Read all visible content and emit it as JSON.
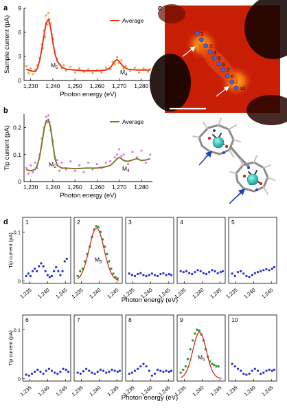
{
  "colors": {
    "average_a": "#e8331f",
    "points_a": "#f7a237",
    "average_b": "#7a7a2a",
    "points_b": "#e57ae3",
    "spectrum_points": "#1f2fd6",
    "peak_points": "#2e9a2e",
    "fit_line": "#d6261c",
    "stm_dots": "#4c61c9"
  },
  "panels": {
    "a": {
      "letter": "a",
      "ylabel": "Sample current (pA)",
      "xlabel": "Photon energy (eV)",
      "legend": "Average",
      "peak1_label": "M",
      "peak1_sub": "5",
      "peak2_label": "M",
      "peak2_sub": "4"
    },
    "b": {
      "letter": "b",
      "ylabel": "Tip current (pA)",
      "xlabel": "Photon energy (eV)",
      "legend": "Average",
      "peak1_label": "M",
      "peak1_sub": "5",
      "peak2_label": "M",
      "peak2_sub": "4"
    },
    "c": {
      "letter": "c"
    },
    "d": {
      "letter": "d",
      "ylabel": "Tip current (pA)",
      "xlabel": "Photon energy (eV)",
      "peak_label": "M",
      "peak_sub": "5"
    }
  },
  "chart_data": [
    {
      "id": "a",
      "type": "scatter",
      "xlabel": "Photon energy (eV)",
      "ylabel": "Sample current (pA)",
      "xlim": [
        1227,
        1285
      ],
      "ylim": [
        0,
        9
      ],
      "xticks": [
        1230,
        1240,
        1250,
        1260,
        1270,
        1280
      ],
      "xtick_labels": [
        "1,230",
        "1,240",
        "1,250",
        "1,260",
        "1,270",
        "1,280"
      ],
      "yticks": [
        0,
        3,
        6,
        9
      ],
      "ytick_labels": [
        "0",
        "3",
        "6",
        "9"
      ],
      "series": [
        {
          "name": "Average",
          "style": "line",
          "x": [
            1228,
            1230,
            1232,
            1233,
            1234,
            1235,
            1236,
            1237,
            1238,
            1239,
            1240,
            1241,
            1242,
            1244,
            1246,
            1250,
            1255,
            1260,
            1264,
            1266,
            1267,
            1268,
            1269,
            1270,
            1271,
            1272,
            1274,
            1278,
            1282,
            1284
          ],
          "y": [
            1.4,
            1.2,
            1.1,
            1.5,
            2.4,
            3.9,
            5.6,
            7.2,
            7.6,
            6.6,
            4.8,
            3.3,
            2.4,
            1.7,
            1.4,
            1.3,
            1.2,
            1.2,
            1.3,
            1.6,
            2.0,
            2.4,
            2.6,
            2.4,
            2.0,
            1.7,
            1.4,
            1.3,
            1.3,
            1.3
          ]
        },
        {
          "name": "",
          "style": "points",
          "x": [
            1228,
            1229,
            1230,
            1231,
            1232,
            1233,
            1234,
            1235,
            1235.5,
            1236,
            1236.5,
            1237,
            1237.5,
            1238,
            1238.5,
            1239,
            1239.5,
            1240,
            1241,
            1242,
            1243,
            1244,
            1245,
            1246,
            1248,
            1250,
            1252,
            1254,
            1256,
            1258,
            1260,
            1262,
            1264,
            1266,
            1267,
            1268,
            1269,
            1270,
            1271,
            1272,
            1273,
            1275,
            1277,
            1279,
            1281,
            1283,
            1284
          ],
          "y": [
            1.8,
            0.9,
            1.5,
            0.8,
            1.3,
            1.9,
            2.8,
            4.5,
            4.0,
            6.2,
            5.4,
            8.1,
            7.0,
            8.4,
            7.6,
            7.1,
            5.8,
            5.2,
            3.6,
            2.7,
            2.0,
            1.5,
            1.9,
            1.2,
            1.7,
            1.0,
            1.5,
            1.1,
            1.4,
            0.9,
            1.3,
            1.0,
            1.6,
            1.4,
            2.3,
            2.0,
            2.9,
            2.2,
            2.5,
            1.5,
            1.8,
            1.2,
            1.6,
            1.0,
            1.5,
            1.1,
            1.4
          ]
        }
      ]
    },
    {
      "id": "b",
      "type": "scatter",
      "xlabel": "Photon energy (eV)",
      "ylabel": "Tip current (pA)",
      "xlim": [
        1227,
        1285
      ],
      "ylim": [
        0,
        0.25
      ],
      "xticks": [
        1230,
        1240,
        1250,
        1260,
        1270,
        1280
      ],
      "xtick_labels": [
        "1,230",
        "1,240",
        "1,250",
        "1,260",
        "1,270",
        "1,280"
      ],
      "yticks": [
        0,
        0.1,
        0.2
      ],
      "ytick_labels": [
        "0",
        "0.1",
        "0.2"
      ],
      "series": [
        {
          "name": "Average",
          "style": "line",
          "x": [
            1228,
            1230,
            1232,
            1233,
            1234,
            1235,
            1236,
            1237,
            1238,
            1239,
            1240,
            1241,
            1242,
            1244,
            1246,
            1250,
            1255,
            1260,
            1264,
            1266,
            1268,
            1269,
            1270,
            1271,
            1272,
            1274,
            1276,
            1278,
            1280,
            1282,
            1284
          ],
          "y": [
            0.045,
            0.04,
            0.045,
            0.06,
            0.09,
            0.14,
            0.19,
            0.225,
            0.23,
            0.2,
            0.14,
            0.085,
            0.06,
            0.05,
            0.05,
            0.048,
            0.05,
            0.05,
            0.055,
            0.06,
            0.075,
            0.085,
            0.09,
            0.085,
            0.078,
            0.075,
            0.08,
            0.085,
            0.078,
            0.08,
            0.085
          ]
        },
        {
          "name": "",
          "style": "points",
          "x": [
            1228,
            1229,
            1230,
            1231,
            1232,
            1233,
            1234,
            1235,
            1236,
            1237,
            1237.5,
            1238,
            1238.5,
            1239,
            1240,
            1241,
            1242,
            1243,
            1244,
            1246,
            1248,
            1250,
            1252,
            1254,
            1256,
            1258,
            1260,
            1262,
            1264,
            1266,
            1268,
            1269,
            1270,
            1271,
            1272,
            1274,
            1276,
            1278,
            1280,
            1282,
            1284
          ],
          "y": [
            0.05,
            0.03,
            0.06,
            0.035,
            0.07,
            0.05,
            0.1,
            0.16,
            0.2,
            0.24,
            0.22,
            0.245,
            0.22,
            0.19,
            0.15,
            0.09,
            0.08,
            0.04,
            0.07,
            0.045,
            0.075,
            0.04,
            0.06,
            0.035,
            0.07,
            0.045,
            0.065,
            0.05,
            0.07,
            0.075,
            0.09,
            0.1,
            0.12,
            0.095,
            0.1,
            0.065,
            0.11,
            0.09,
            0.115,
            0.07,
            0.1
          ]
        }
      ]
    },
    {
      "id": "d",
      "type": "scatter",
      "xlabel": "Photon energy (eV)",
      "ylabel": "Tip current (pA)",
      "xlim": [
        1233,
        1246.5
      ],
      "ylim": [
        -0.005,
        0.13
      ],
      "xticks": [
        1235,
        1240,
        1245
      ],
      "xtick_labels": [
        "1,235",
        "1,240",
        "1,245"
      ],
      "yticks": [
        0,
        0.1
      ],
      "ytick_labels": [
        "0",
        "0.1"
      ],
      "subplots": [
        {
          "label": "1",
          "kind": "flat",
          "x": [
            1234,
            1234.6,
            1235.2,
            1235.8,
            1236.4,
            1237,
            1237.6,
            1238.2,
            1238.8,
            1239.4,
            1240,
            1240.6,
            1241.2,
            1241.8,
            1242.4,
            1243,
            1243.6,
            1244.2,
            1244.8,
            1245.4
          ],
          "y": [
            0.01,
            0.015,
            0.01,
            0.02,
            0.025,
            0.02,
            0.03,
            0.036,
            0.03,
            0.02,
            0.012,
            0.008,
            0.01,
            0.02,
            0.028,
            0.02,
            0.012,
            0.02,
            0.04,
            0.045
          ]
        },
        {
          "label": "2",
          "kind": "peak",
          "points_x": [
            1234,
            1234.7,
            1235.4,
            1236,
            1236.7,
            1237.4,
            1238,
            1238.6,
            1239.2,
            1239.8,
            1240.4,
            1241,
            1241.6,
            1242.2,
            1242.8,
            1243.4,
            1244,
            1244.6,
            1245.2
          ],
          "points_y": [
            0.01,
            0.02,
            0.025,
            0.04,
            0.055,
            0.07,
            0.09,
            0.105,
            0.112,
            0.11,
            0.1,
            0.085,
            0.07,
            0.055,
            0.04,
            0.025,
            0.015,
            0.008,
            0.005
          ],
          "fit_center": 1239.3,
          "fit_amp": 0.108,
          "fit_width": 2.1
        },
        {
          "label": "3",
          "kind": "flat",
          "x": [
            1234,
            1234.8,
            1235.6,
            1236.4,
            1237.2,
            1238,
            1238.8,
            1239.6,
            1240.4,
            1241.2,
            1242,
            1242.8,
            1243.6,
            1244.4,
            1245.2,
            1245.8
          ],
          "y": [
            0.015,
            0.012,
            0.01,
            0.014,
            0.016,
            0.012,
            0.01,
            0.012,
            0.015,
            0.012,
            0.01,
            0.014,
            0.016,
            0.012,
            0.014,
            0.012
          ]
        },
        {
          "label": "4",
          "kind": "flat",
          "x": [
            1234,
            1234.8,
            1235.6,
            1236.4,
            1237.2,
            1238,
            1238.8,
            1239.6,
            1240.4,
            1241.2,
            1242,
            1242.8,
            1243.6,
            1244.4,
            1245.2,
            1245.8
          ],
          "y": [
            0.02,
            0.018,
            0.02,
            0.016,
            0.014,
            0.018,
            0.022,
            0.02,
            0.016,
            0.014,
            0.018,
            0.022,
            0.02,
            0.016,
            0.018,
            0.02
          ]
        },
        {
          "label": "5",
          "kind": "flat",
          "x": [
            1234,
            1234.8,
            1235.6,
            1236.4,
            1237.2,
            1238,
            1238.8,
            1239.6,
            1240.4,
            1241.2,
            1242,
            1242.8,
            1243.6,
            1244.4,
            1245.2,
            1245.8
          ],
          "y": [
            0.015,
            0.01,
            0.018,
            0.02,
            0.015,
            0.01,
            0.008,
            0.012,
            0.016,
            0.018,
            0.02,
            0.022,
            0.024,
            0.022,
            0.025,
            0.028
          ]
        },
        {
          "label": "6",
          "kind": "flat",
          "x": [
            1234,
            1234.8,
            1235.6,
            1236.4,
            1237.2,
            1238,
            1238.8,
            1239.6,
            1240.4,
            1241.2,
            1242,
            1242.8,
            1243.6,
            1244.4,
            1245.2,
            1245.8
          ],
          "y": [
            0.008,
            0.006,
            0.01,
            0.014,
            0.018,
            0.014,
            0.01,
            0.016,
            0.02,
            0.016,
            0.012,
            0.01,
            0.014,
            0.02,
            0.018,
            0.014
          ]
        },
        {
          "label": "7",
          "kind": "flat",
          "x": [
            1234,
            1234.8,
            1235.6,
            1236.4,
            1237.2,
            1238,
            1238.8,
            1239.6,
            1240.4,
            1241.2,
            1242,
            1242.8,
            1243.6,
            1244.4,
            1245.2,
            1245.8
          ],
          "y": [
            0.012,
            0.01,
            0.015,
            0.02,
            0.016,
            0.012,
            0.01,
            0.014,
            0.018,
            0.016,
            0.012,
            0.014,
            0.018,
            0.016,
            0.014,
            0.016
          ]
        },
        {
          "label": "8",
          "kind": "flat",
          "x": [
            1234,
            1234.8,
            1235.6,
            1236.4,
            1237.2,
            1238,
            1238.8,
            1239.6,
            1240.4,
            1241.2,
            1242,
            1242.8,
            1243.6,
            1244.4,
            1245.2,
            1245.8
          ],
          "y": [
            0.01,
            0.012,
            0.016,
            0.02,
            0.025,
            0.03,
            0.025,
            0.016,
            0.006,
            0.01,
            0.018,
            0.016,
            0.014,
            0.016,
            0.014,
            0.016
          ]
        },
        {
          "label": "9",
          "kind": "peak",
          "points_x": [
            1234,
            1234.7,
            1235.4,
            1236,
            1236.7,
            1237.4,
            1238,
            1238.6,
            1239.2,
            1239.8,
            1240.4,
            1241,
            1241.6,
            1242.2,
            1242.8,
            1243.4,
            1244,
            1244.6
          ],
          "points_y": [
            0.012,
            0.018,
            0.025,
            0.04,
            0.06,
            0.078,
            0.092,
            0.1,
            0.098,
            0.09,
            0.078,
            0.06,
            0.045,
            0.035,
            0.03,
            0.028,
            0.025,
            0.025
          ],
          "fit_center": 1239.3,
          "fit_amp": 0.095,
          "fit_width": 1.9
        },
        {
          "label": "10",
          "kind": "flat",
          "x": [
            1234,
            1234.8,
            1235.6,
            1236.4,
            1237.2,
            1238,
            1238.8,
            1239.6,
            1240.4,
            1241.2,
            1242,
            1242.8,
            1243.6,
            1244.4,
            1245.2,
            1245.8
          ],
          "y": [
            0.03,
            0.025,
            0.02,
            0.016,
            0.01,
            0.008,
            0.01,
            0.016,
            0.02,
            0.016,
            0.01,
            0.012,
            0.016,
            0.018,
            0.016,
            0.018
          ]
        }
      ]
    }
  ],
  "stm": {
    "dot_labels": [
      "1",
      "2",
      "3",
      "4",
      "5",
      "6",
      "7",
      "8",
      "9",
      "10"
    ],
    "dot_labels_red": [
      "2",
      "9"
    ]
  }
}
